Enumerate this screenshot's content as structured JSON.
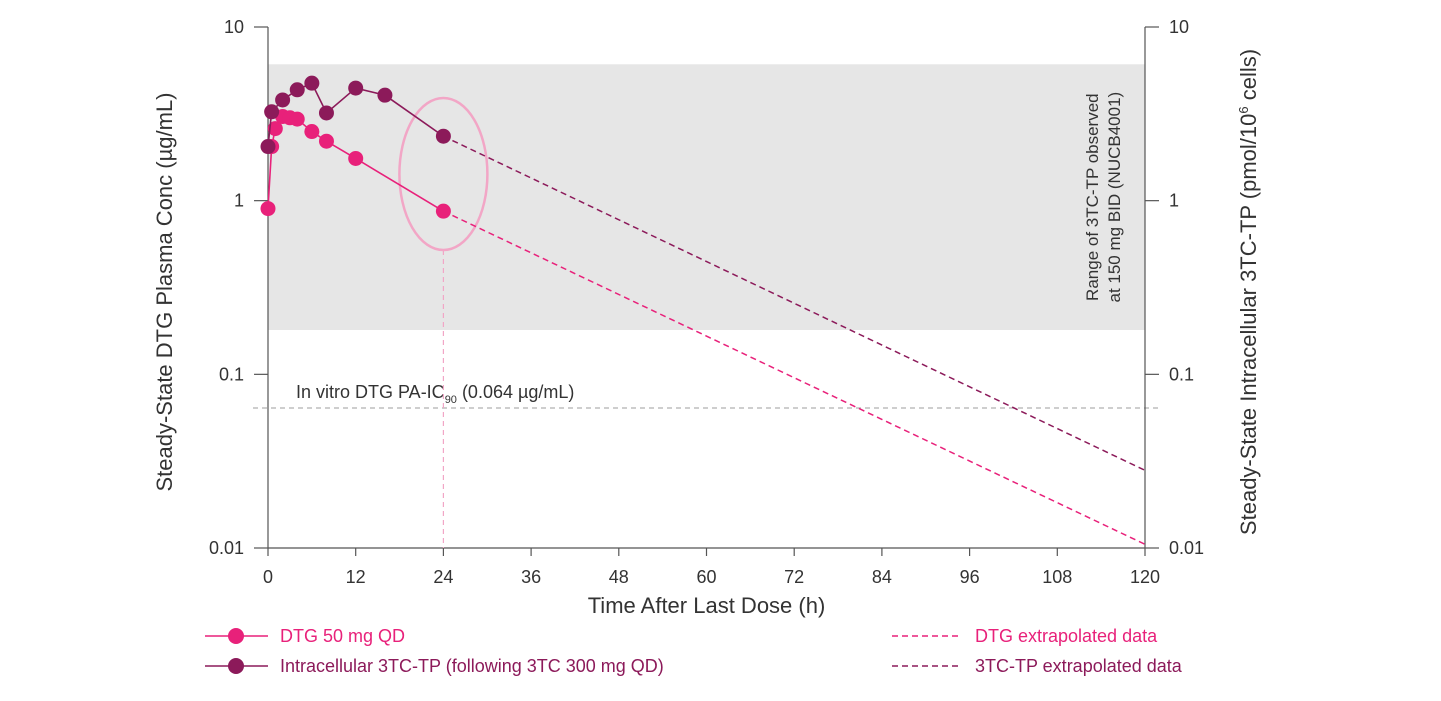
{
  "chart_data": {
    "type": "line",
    "x_axis": {
      "label": "Time After Last Dose (h)",
      "range": [
        0,
        120
      ],
      "ticks": [
        0,
        12,
        24,
        36,
        48,
        60,
        72,
        84,
        96,
        108,
        120
      ]
    },
    "y_axis_left": {
      "label_main": "Steady-State DTG Plasma Conc (µg/mL)",
      "scale": "log",
      "range": [
        0.01,
        10
      ],
      "ticks": [
        {
          "value": 0.01,
          "label": "0.01"
        },
        {
          "value": 0.1,
          "label": "0.1"
        },
        {
          "value": 1,
          "label": "1"
        },
        {
          "value": 10,
          "label": "10"
        }
      ]
    },
    "y_axis_right": {
      "label_main": "Steady-State Intracellular 3TC-TP (pmol/10",
      "label_sup": "6",
      "label_end": " cells)",
      "scale": "log",
      "range": [
        0.01,
        10
      ],
      "ticks": [
        {
          "value": 0.01,
          "label": "0.01"
        },
        {
          "value": 0.1,
          "label": "0.1"
        },
        {
          "value": 1,
          "label": "1"
        },
        {
          "value": 10,
          "label": "10"
        }
      ]
    },
    "shaded_band": {
      "y_range": [
        0.18,
        6.1
      ],
      "label_line1": "Range of 3TC-TP observed",
      "label_line2": "at 150 mg BID (NUCB4001)",
      "color": "#e6e6e6"
    },
    "reference_line": {
      "value": 0.064,
      "label_main": "In vitro DTG PA-IC",
      "label_sub": "90",
      "label_end": " (0.064 µg/mL)"
    },
    "highlight_time": 24,
    "series": [
      {
        "name": "DTG 50 mg QD",
        "color": "#e8217a",
        "points": [
          {
            "x": 0,
            "y": 0.9
          },
          {
            "x": 0.5,
            "y": 2.05
          },
          {
            "x": 1,
            "y": 2.6
          },
          {
            "x": 2,
            "y": 3.05
          },
          {
            "x": 3,
            "y": 3.0
          },
          {
            "x": 4,
            "y": 2.95
          },
          {
            "x": 6,
            "y": 2.5
          },
          {
            "x": 8,
            "y": 2.2
          },
          {
            "x": 12,
            "y": 1.75
          },
          {
            "x": 24,
            "y": 0.87
          }
        ]
      },
      {
        "name": "Intracellular 3TC-TP (following 3TC 300 mg QD)",
        "color": "#8c1a5a",
        "points": [
          {
            "x": 0,
            "y": 2.05
          },
          {
            "x": 0.5,
            "y": 3.25
          },
          {
            "x": 2,
            "y": 3.8
          },
          {
            "x": 4,
            "y": 4.35
          },
          {
            "x": 6,
            "y": 4.75
          },
          {
            "x": 8,
            "y": 3.2
          },
          {
            "x": 12,
            "y": 4.45
          },
          {
            "x": 16,
            "y": 4.05
          },
          {
            "x": 24,
            "y": 2.35
          }
        ]
      }
    ],
    "extrapolations": [
      {
        "name": "DTG extrapolated data",
        "color": "#e8217a",
        "from": {
          "x": 24,
          "y": 0.87
        },
        "to": {
          "x": 120,
          "y": 0.0105
        }
      },
      {
        "name": "3TC-TP extrapolated data",
        "color": "#8c1a5a",
        "from": {
          "x": 24,
          "y": 2.35
        },
        "to": {
          "x": 120,
          "y": 0.028
        }
      }
    ]
  },
  "colors": {
    "dtg": "#e8217a",
    "tctp": "#8c1a5a",
    "ellipse": "#f2a6c6",
    "band": "#e6e6e6",
    "reference": "#bdbdbd",
    "axis": "#555555"
  }
}
